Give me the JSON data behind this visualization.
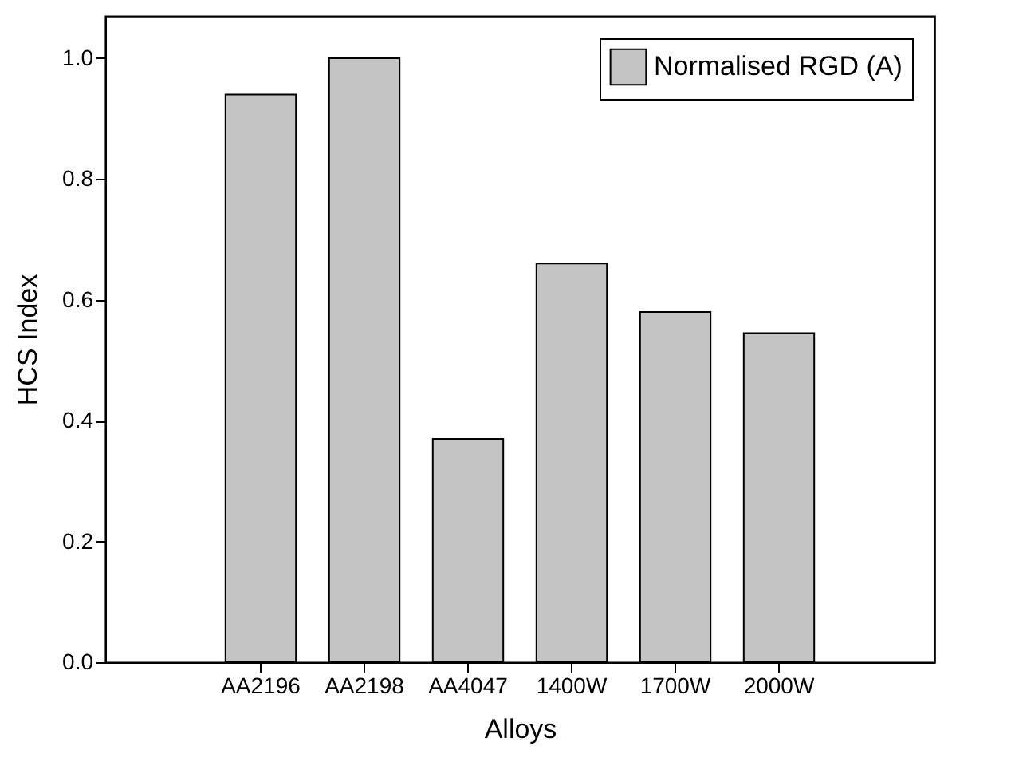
{
  "chart_data": {
    "type": "bar",
    "xlabel": "Alloys",
    "ylabel": "HCS Index",
    "categories": [
      "AA2196",
      "AA2198",
      "AA4047",
      "1400W",
      "1700W",
      "2000W"
    ],
    "series": [
      {
        "name": "Normalised RGD (A)",
        "color": "#c4c4c4",
        "values": [
          0.94,
          1.0,
          0.37,
          0.66,
          0.58,
          0.545
        ]
      }
    ],
    "ylim": [
      0,
      1.07
    ],
    "yticks": [
      {
        "value": 0,
        "label": "0.0"
      },
      0.2,
      0.4,
      0.6,
      0.8,
      {
        "value": 1,
        "label": "1.0"
      }
    ],
    "legend": "top right",
    "grid": false
  }
}
